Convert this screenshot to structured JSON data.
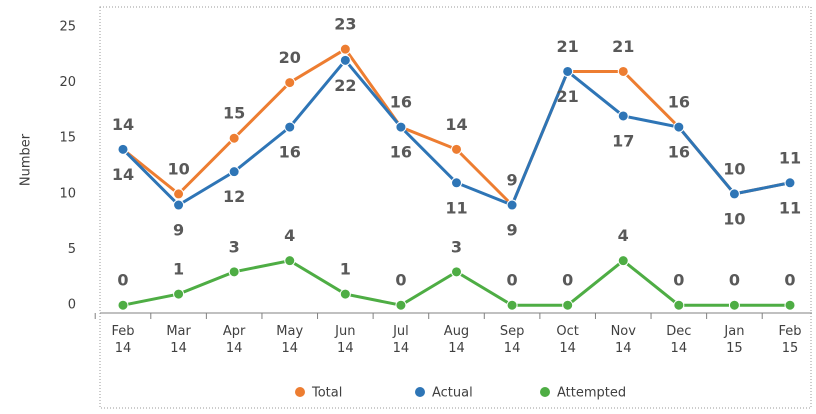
{
  "chart_data": {
    "type": "line",
    "y_label": "Number",
    "categories": [
      "Feb 14",
      "Mar 14",
      "Apr 14",
      "May 14",
      "Jun 14",
      "Jul 14",
      "Aug 14",
      "Sep 14",
      "Oct 14",
      "Nov 14",
      "Dec 14",
      "Jan 15",
      "Feb 15"
    ],
    "series": [
      {
        "name": "Total",
        "color": "#ed7d31",
        "values": [
          14,
          10,
          15,
          20,
          23,
          16,
          14,
          9,
          21,
          21,
          16,
          10,
          11
        ]
      },
      {
        "name": "Actual",
        "color": "#2e75b6",
        "values": [
          14,
          9,
          12,
          16,
          22,
          16,
          11,
          9,
          21,
          17,
          16,
          10,
          11
        ]
      },
      {
        "name": "Attempted",
        "color": "#4ead44",
        "values": [
          0,
          1,
          3,
          4,
          1,
          0,
          3,
          0,
          0,
          4,
          0,
          0,
          0
        ]
      }
    ],
    "ylim": [
      -0.7,
      26.7
    ],
    "yticks": [
      0,
      5,
      10,
      15,
      20,
      25
    ],
    "legend": "bottom"
  }
}
